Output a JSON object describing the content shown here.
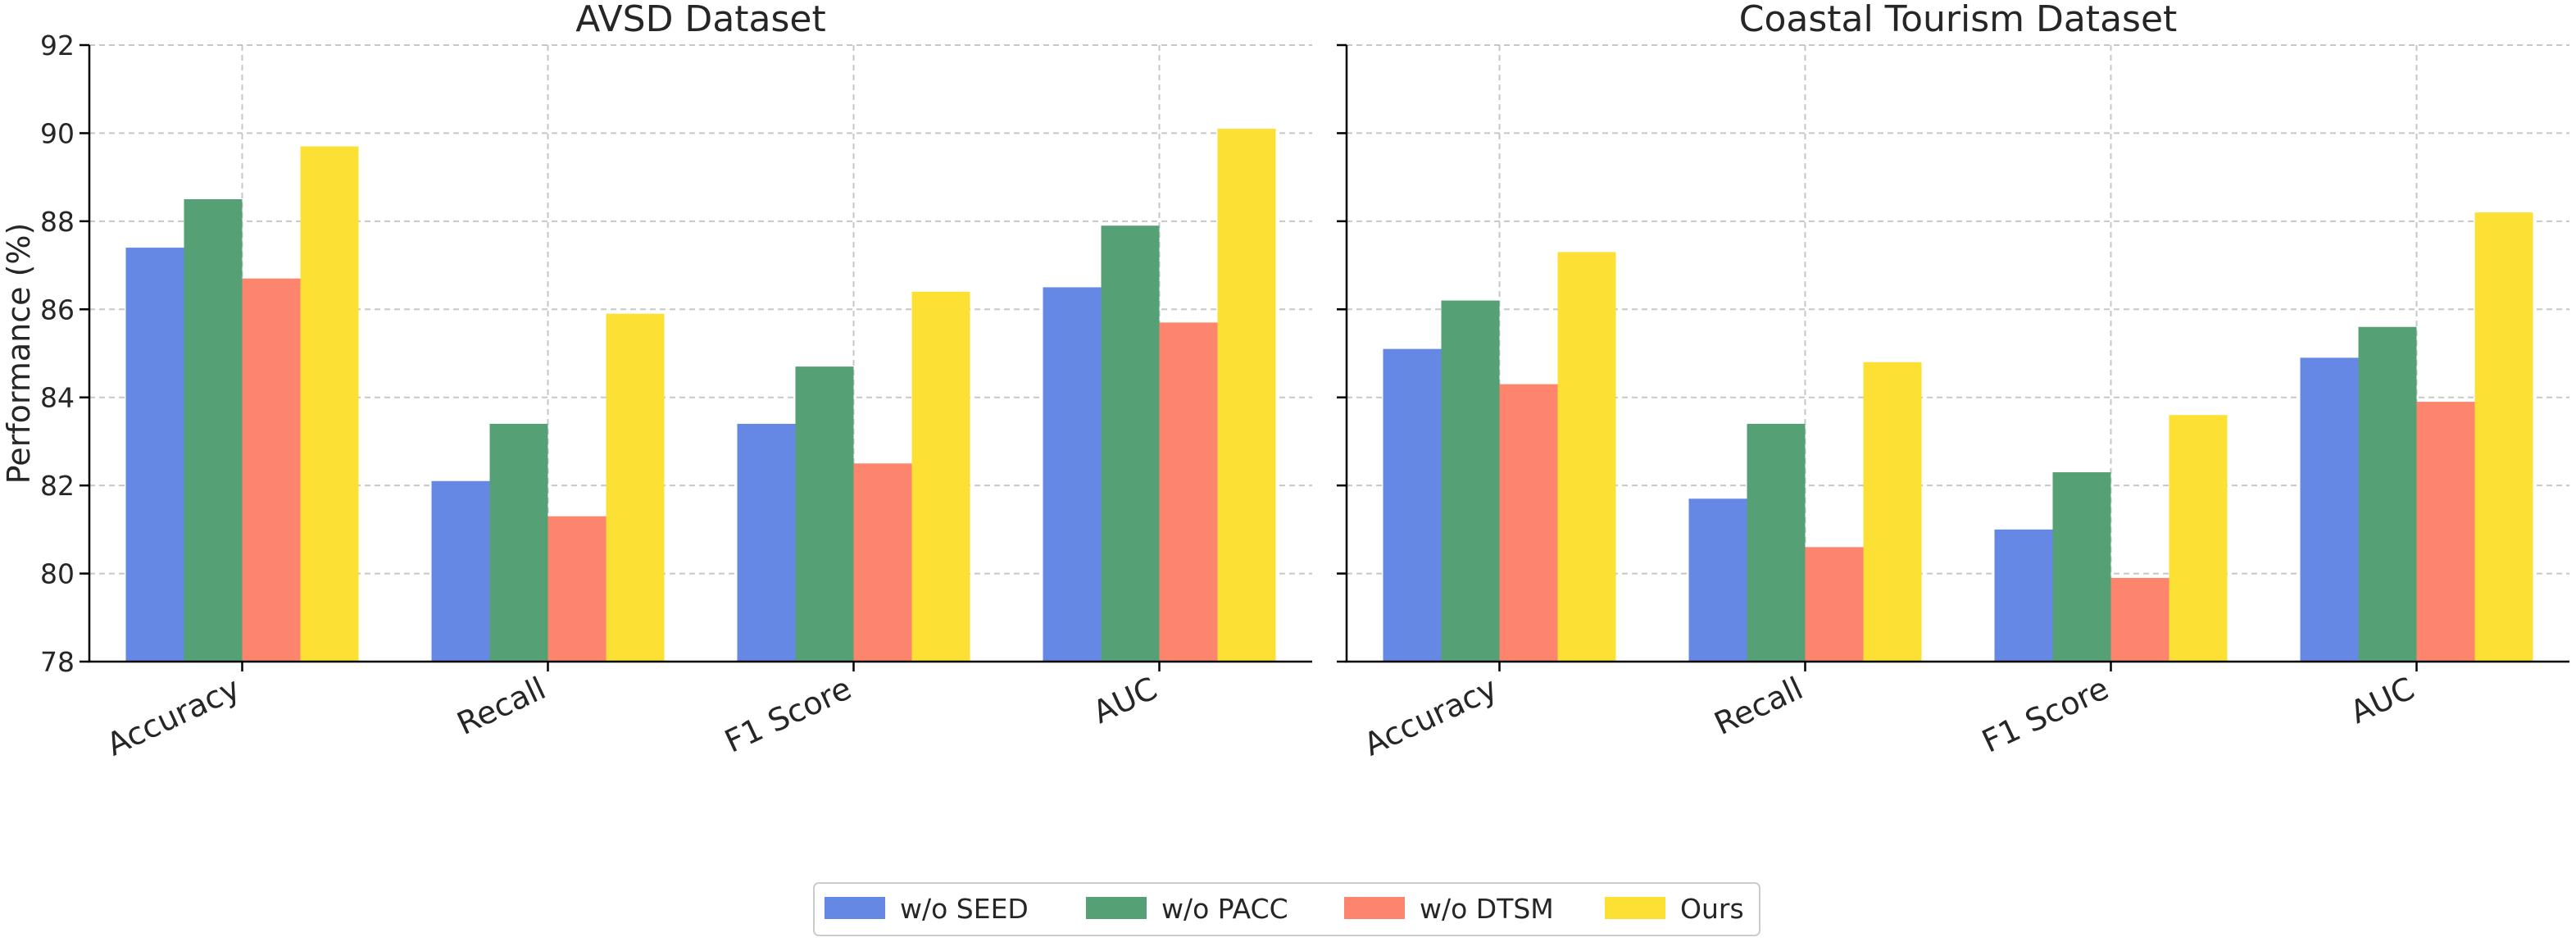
{
  "chart_data": [
    {
      "type": "bar",
      "title": "AVSD Dataset",
      "xlabel": "",
      "ylabel": "Performance (%)",
      "ylim": [
        78,
        92
      ],
      "yticks": [
        78,
        80,
        82,
        84,
        86,
        88,
        90,
        92
      ],
      "grid": true,
      "categories": [
        "Accuracy",
        "Recall",
        "F1 Score",
        "AUC"
      ],
      "series": [
        {
          "name": "w/o SEED",
          "color": "#6688e5",
          "values": [
            87.4,
            82.1,
            83.4,
            86.5
          ]
        },
        {
          "name": "w/o PACC",
          "color": "#56a075",
          "values": [
            88.5,
            83.4,
            84.7,
            87.9
          ]
        },
        {
          "name": "w/o DTSM",
          "color": "#fd846d",
          "values": [
            86.7,
            81.3,
            82.5,
            85.7
          ]
        },
        {
          "name": "Ours",
          "color": "#fde034",
          "values": [
            89.7,
            85.9,
            86.4,
            90.1
          ]
        }
      ]
    },
    {
      "type": "bar",
      "title": "Coastal Tourism Dataset",
      "xlabel": "",
      "ylabel": "",
      "ylim": [
        78,
        92
      ],
      "yticks": [
        78,
        80,
        82,
        84,
        86,
        88,
        90,
        92
      ],
      "grid": true,
      "categories": [
        "Accuracy",
        "Recall",
        "F1 Score",
        "AUC"
      ],
      "series": [
        {
          "name": "w/o SEED",
          "color": "#6688e5",
          "values": [
            85.1,
            81.7,
            81.0,
            84.9
          ]
        },
        {
          "name": "w/o PACC",
          "color": "#56a075",
          "values": [
            86.2,
            83.4,
            82.3,
            85.6
          ]
        },
        {
          "name": "w/o DTSM",
          "color": "#fd846d",
          "values": [
            84.3,
            80.6,
            79.9,
            83.9
          ]
        },
        {
          "name": "Ours",
          "color": "#fde034",
          "values": [
            87.3,
            84.8,
            83.6,
            88.2
          ]
        }
      ]
    }
  ],
  "legend": {
    "placement": "bottom-center",
    "entries": [
      {
        "label": "w/o SEED",
        "color": "#6688e5"
      },
      {
        "label": "w/o PACC",
        "color": "#56a075"
      },
      {
        "label": "w/o DTSM",
        "color": "#fd846d"
      },
      {
        "label": "Ours",
        "color": "#fde034"
      }
    ]
  }
}
